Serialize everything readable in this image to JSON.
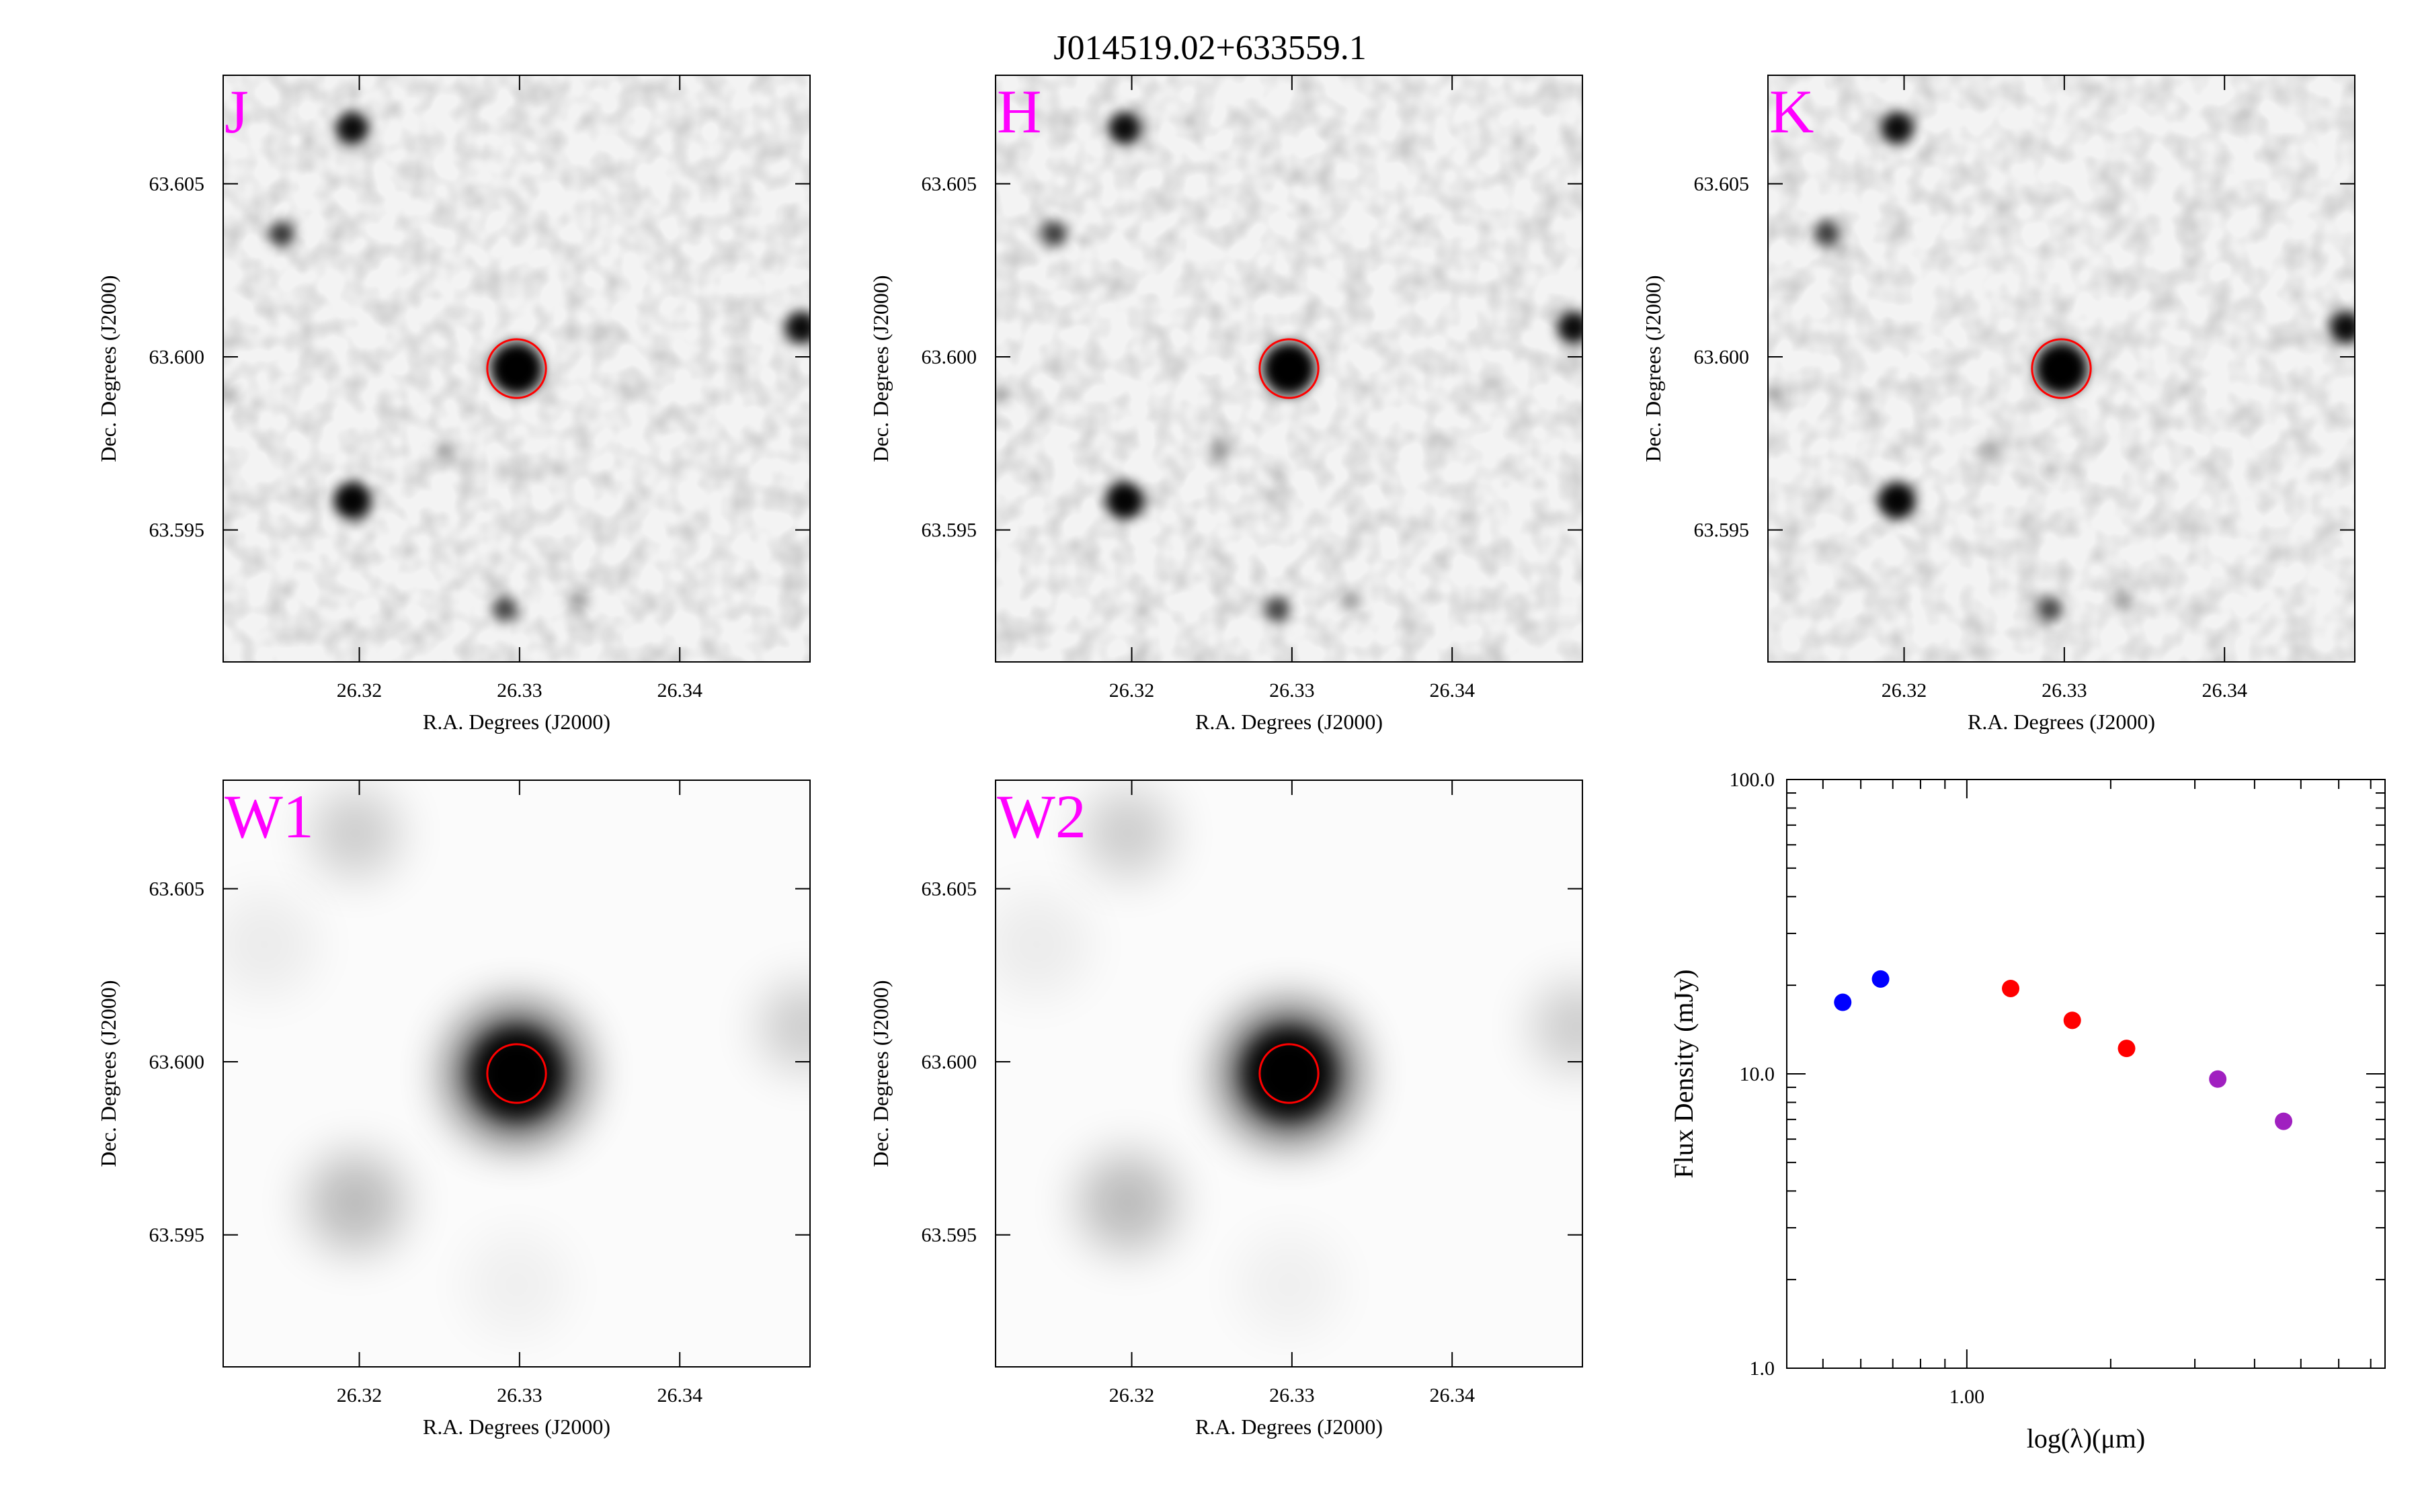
{
  "title": "J014519.02+633559.1",
  "colors": {
    "band_label": "#ff00ff",
    "aperture": "#ff0000",
    "optical_points": "#0000ff",
    "nir_points": "#ff0000",
    "wise_points": "#a020c0"
  },
  "images": {
    "x_label": "R.A. Degrees (J2000)",
    "y_label": "Dec. Degrees (J2000)",
    "x_ticks": [
      "26.32",
      "26.33",
      "26.34"
    ],
    "y_ticks": [
      "63.605",
      "63.600",
      "63.595"
    ],
    "panels": [
      {
        "band": "J"
      },
      {
        "band": "H"
      },
      {
        "band": "K"
      },
      {
        "band": "W1"
      },
      {
        "band": "W2"
      }
    ]
  },
  "chart_data": {
    "type": "scatter",
    "xlabel": "log(λ)(μm)",
    "ylabel": "Flux Density (mJy)",
    "xscale": "log",
    "yscale": "log",
    "xlim": [
      0.42,
      7.5
    ],
    "ylim": [
      1.0,
      100.0
    ],
    "y_ticks": [
      "100.0",
      "10.0",
      "1.0"
    ],
    "x_ticks": [
      "1.00"
    ],
    "series": [
      {
        "color": "#0000ff",
        "x": [
          0.55,
          0.66
        ],
        "y": [
          17.5,
          21.0
        ]
      },
      {
        "color": "#ff0000",
        "x": [
          1.235,
          1.662,
          2.159
        ],
        "y": [
          19.5,
          15.2,
          12.2
        ]
      },
      {
        "color": "#a020c0",
        "x": [
          3.35,
          4.6
        ],
        "y": [
          9.6,
          6.9
        ]
      }
    ]
  }
}
